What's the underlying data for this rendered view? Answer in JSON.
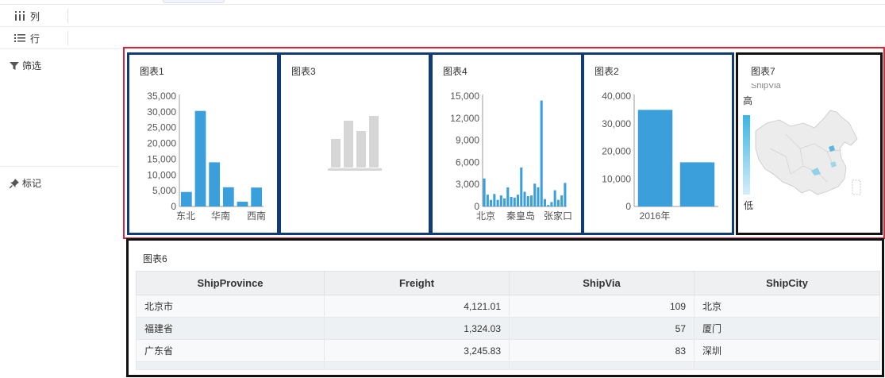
{
  "shelves": {
    "columns_label": "列",
    "rows_label": "行"
  },
  "left": {
    "filter_label": "筛选",
    "marks_label": "标记"
  },
  "colors": {
    "bar": "#3a9fdb",
    "card_border": "#113c73",
    "selected_frame": "#d3273b",
    "placeholder": "#d6d6d6",
    "map_land": "#ececec",
    "map_high": "#3ab5e3",
    "map_low": "#c9e9f6"
  },
  "charts": {
    "c1": {
      "title": "图表1",
      "chart_data": {
        "type": "bar",
        "categories": [
          "东北",
          "",
          "华南",
          "",
          "",
          "西南"
        ],
        "values": [
          4600,
          30300,
          14000,
          6100,
          1500,
          6000
        ],
        "yticks": [
          "35,000",
          "30,000",
          "25,000",
          "20,000",
          "15,000",
          "10,000",
          "5,000",
          "0"
        ],
        "ylim": [
          0,
          35000
        ],
        "xticklabels": [
          "东北",
          "华南",
          "西南"
        ]
      }
    },
    "c3": {
      "title": "图表3"
    },
    "c4": {
      "title": "图表4",
      "chart_data": {
        "type": "bar",
        "values": [
          3800,
          1600,
          900,
          1700,
          900,
          1500,
          1100,
          2600,
          1300,
          1200,
          1600,
          5300,
          2000,
          1400,
          1500,
          3100,
          2600,
          14400,
          1000,
          200,
          600,
          2200,
          900,
          1500,
          3200
        ],
        "yticks": [
          "15,000",
          "12,000",
          "9,000",
          "6,000",
          "3,000",
          "0"
        ],
        "ylim": [
          0,
          15000
        ],
        "xticklabels": [
          "北京",
          "秦皇岛",
          "张家口"
        ]
      }
    },
    "c2": {
      "title": "图表2",
      "chart_data": {
        "type": "bar",
        "categories": [
          "2016年",
          ""
        ],
        "values": [
          35000,
          16000
        ],
        "yticks": [
          "40,000",
          "30,000",
          "20,000",
          "10,000",
          "0"
        ],
        "ylim": [
          0,
          40000
        ],
        "xticklabels": [
          "2016年"
        ]
      }
    },
    "c7": {
      "title": "图表7",
      "legend_title": "ShipVia",
      "legend_high": "高",
      "legend_low": "低"
    }
  },
  "table": {
    "title": "图表6",
    "headers": [
      "ShipProvince",
      "Freight",
      "ShipVia",
      "ShipCity"
    ],
    "rows": [
      [
        "北京市",
        "4,121.01",
        "109",
        "北京"
      ],
      [
        "福建省",
        "1,324.03",
        "57",
        "厦门"
      ],
      [
        "广东省",
        "3,245.83",
        "83",
        "深圳"
      ]
    ]
  }
}
